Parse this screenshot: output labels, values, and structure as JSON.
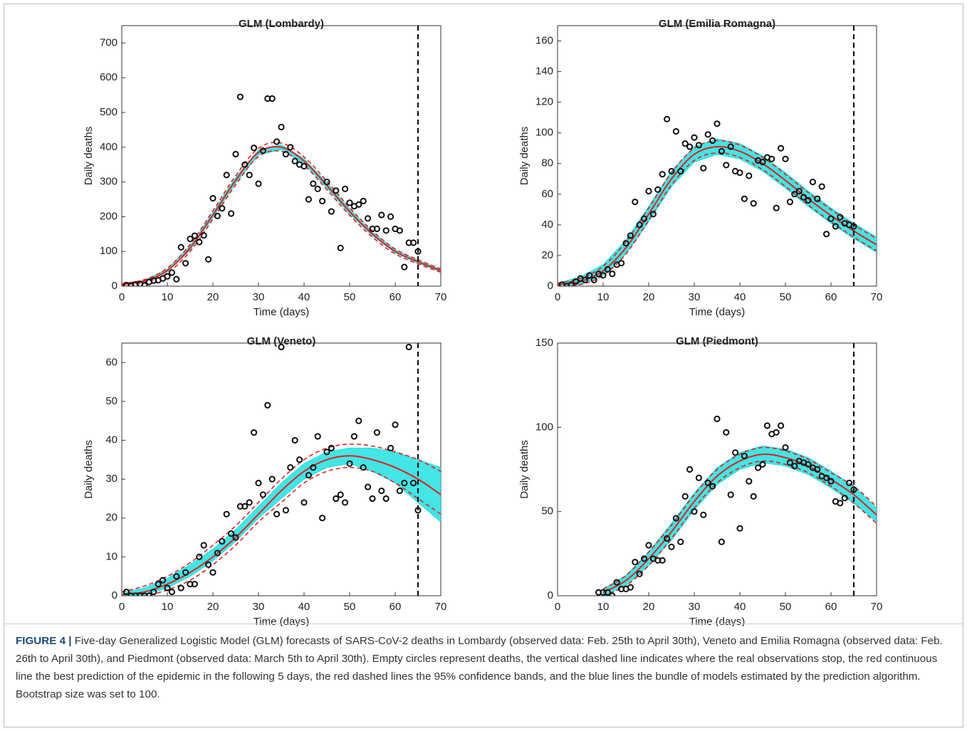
{
  "chart_data": [
    {
      "type": "glm-forecast",
      "title": "GLM (Lombardy)",
      "x_label": "Time (days)",
      "y_label": "Daily deaths",
      "xlim": [
        0,
        70
      ],
      "xticks": [
        0,
        10,
        20,
        30,
        40,
        50,
        60,
        70
      ],
      "ylim": [
        0,
        750
      ],
      "yticks": [
        0,
        100,
        200,
        300,
        400,
        500,
        600,
        700
      ],
      "cutoff_x": 65,
      "point_color": "#111111",
      "fit_color": "#e02020",
      "bundle_color": "#22e0e0",
      "points": {
        "x": [
          1,
          2,
          3,
          4,
          5,
          6,
          7,
          8,
          9,
          10,
          11,
          12,
          13,
          14,
          15,
          16,
          17,
          18,
          19,
          20,
          21,
          22,
          23,
          24,
          25,
          26,
          27,
          28,
          29,
          30,
          31,
          32,
          33,
          34,
          35,
          36,
          37,
          38,
          39,
          40,
          41,
          42,
          43,
          44,
          45,
          46,
          47,
          48,
          49,
          50,
          51,
          52,
          53,
          54,
          55,
          56,
          57,
          58,
          59,
          60,
          61,
          62,
          63,
          64,
          65
        ],
        "y": [
          3,
          2,
          5,
          6,
          2,
          12,
          16,
          17,
          22,
          28,
          39,
          20,
          112,
          66,
          136,
          145,
          127,
          146,
          77,
          253,
          202,
          224,
          320,
          209,
          380,
          545,
          350,
          320,
          398,
          295,
          390,
          540,
          540,
          416,
          458,
          380,
          400,
          360,
          350,
          345,
          250,
          295,
          280,
          245,
          300,
          215,
          275,
          110,
          280,
          240,
          230,
          235,
          245,
          195,
          165,
          165,
          205,
          160,
          200,
          165,
          160,
          55,
          125,
          125,
          100
        ]
      },
      "fit": {
        "x": [
          0,
          5,
          10,
          15,
          20,
          25,
          30,
          35,
          40,
          45,
          50,
          55,
          60,
          65,
          70
        ],
        "values": [
          5,
          15,
          45,
          110,
          205,
          305,
          385,
          400,
          360,
          290,
          215,
          150,
          100,
          70,
          45
        ],
        "lower": [
          3,
          11,
          38,
          100,
          193,
          292,
          373,
          388,
          348,
          278,
          204,
          141,
          93,
          64,
          40
        ],
        "upper": [
          7,
          19,
          52,
          120,
          217,
          318,
          397,
          412,
          372,
          302,
          226,
          159,
          107,
          76,
          50
        ],
        "bundle_lower": [
          4,
          13,
          41,
          104,
          198,
          297,
          378,
          393,
          353,
          283,
          208,
          145,
          96,
          66,
          42
        ],
        "bundle_upper": [
          6,
          17,
          49,
          116,
          212,
          313,
          392,
          407,
          367,
          297,
          222,
          155,
          104,
          74,
          48
        ]
      }
    },
    {
      "type": "glm-forecast",
      "title": "GLM (Emilia Romagna)",
      "x_label": "Time (days)",
      "y_label": "Daily deaths",
      "xlim": [
        0,
        70
      ],
      "xticks": [
        0,
        10,
        20,
        30,
        40,
        50,
        60,
        70
      ],
      "ylim": [
        0,
        170
      ],
      "yticks": [
        0,
        20,
        40,
        60,
        80,
        100,
        120,
        140,
        160
      ],
      "cutoff_x": 65,
      "point_color": "#111111",
      "fit_color": "#e02020",
      "bundle_color": "#22e0e0",
      "points": {
        "x": [
          1,
          2,
          3,
          4,
          5,
          6,
          7,
          8,
          9,
          10,
          11,
          12,
          13,
          14,
          15,
          16,
          17,
          18,
          19,
          20,
          21,
          22,
          23,
          24,
          25,
          26,
          27,
          28,
          29,
          30,
          31,
          32,
          33,
          34,
          35,
          36,
          37,
          38,
          39,
          40,
          41,
          42,
          43,
          44,
          45,
          46,
          47,
          48,
          49,
          50,
          51,
          52,
          53,
          54,
          55,
          56,
          57,
          58,
          59,
          60,
          61,
          62,
          63,
          64,
          65
        ],
        "y": [
          1,
          0,
          1,
          3,
          5,
          4,
          7,
          4,
          8,
          7,
          11,
          8,
          14,
          15,
          28,
          33,
          55,
          40,
          44,
          62,
          47,
          63,
          73,
          109,
          75,
          101,
          75,
          93,
          91,
          97,
          92,
          77,
          99,
          95,
          106,
          88,
          79,
          91,
          75,
          74,
          57,
          72,
          54,
          82,
          81,
          84,
          83,
          51,
          90,
          83,
          55,
          60,
          62,
          58,
          56,
          68,
          57,
          65,
          34,
          44,
          39,
          45,
          41,
          40,
          39
        ]
      },
      "fit": {
        "x": [
          0,
          5,
          10,
          15,
          20,
          25,
          30,
          35,
          40,
          45,
          50,
          55,
          60,
          65,
          70
        ],
        "values": [
          1,
          3,
          10,
          25,
          47,
          70,
          86,
          91,
          88,
          80,
          69,
          57,
          46,
          36,
          27
        ],
        "lower": [
          0,
          1,
          7,
          21,
          43,
          66,
          82,
          87,
          84,
          76,
          65,
          53,
          42,
          32,
          23
        ],
        "upper": [
          2,
          5,
          13,
          29,
          51,
          74,
          90,
          95,
          92,
          84,
          73,
          61,
          50,
          40,
          31
        ],
        "bundle_lower": [
          0,
          1,
          7,
          21,
          42,
          65,
          81,
          86,
          83,
          75,
          64,
          52,
          41,
          31,
          22
        ],
        "bundle_upper": [
          2,
          6,
          14,
          30,
          52,
          75,
          91,
          96,
          93,
          85,
          74,
          62,
          51,
          41,
          32
        ]
      }
    },
    {
      "type": "glm-forecast",
      "title": "GLM (Veneto)",
      "x_label": "Time (days)",
      "y_label": "Daily deaths",
      "xlim": [
        0,
        70
      ],
      "xticks": [
        0,
        10,
        20,
        30,
        40,
        50,
        60,
        70
      ],
      "ylim": [
        0,
        65
      ],
      "yticks": [
        0,
        10,
        20,
        30,
        40,
        50,
        60
      ],
      "cutoff_x": 65,
      "point_color": "#111111",
      "fit_color": "#e02020",
      "bundle_color": "#22e0e0",
      "points": {
        "x": [
          1,
          2,
          3,
          4,
          5,
          6,
          7,
          8,
          9,
          10,
          11,
          12,
          13,
          14,
          15,
          16,
          17,
          18,
          19,
          20,
          21,
          22,
          23,
          24,
          25,
          26,
          27,
          28,
          29,
          30,
          31,
          32,
          33,
          34,
          35,
          36,
          37,
          38,
          39,
          40,
          41,
          42,
          43,
          44,
          45,
          46,
          47,
          48,
          49,
          50,
          51,
          52,
          53,
          54,
          55,
          56,
          57,
          58,
          59,
          60,
          61,
          62,
          63,
          64,
          65
        ],
        "y": [
          1,
          0,
          0,
          0,
          0,
          0,
          1,
          3,
          4,
          2,
          1,
          5,
          2,
          6,
          3,
          3,
          10,
          13,
          8,
          6,
          11,
          14,
          21,
          16,
          15,
          23,
          23,
          24,
          42,
          29,
          26,
          49,
          30,
          21,
          64,
          22,
          33,
          40,
          35,
          24,
          31,
          33,
          41,
          20,
          37,
          38,
          25,
          26,
          24,
          34,
          41,
          45,
          33,
          28,
          25,
          42,
          27,
          25,
          38,
          44,
          27,
          29,
          64,
          29,
          22
        ]
      },
      "fit": {
        "x": [
          0,
          5,
          10,
          15,
          20,
          25,
          30,
          35,
          40,
          45,
          50,
          55,
          60,
          65,
          70
        ],
        "values": [
          0.3,
          1,
          3,
          6,
          10,
          15,
          21,
          27,
          32,
          35,
          36,
          35,
          33,
          30,
          26
        ],
        "lower": [
          0,
          0,
          1.5,
          4,
          8,
          13,
          19,
          24,
          29,
          32,
          33,
          32,
          29,
          25,
          21
        ],
        "upper": [
          1,
          2.5,
          5,
          8.5,
          13,
          18,
          24,
          30,
          35,
          38,
          39,
          38.5,
          37,
          35,
          32
        ],
        "bundle_lower": [
          0,
          0.3,
          2,
          5,
          9,
          14,
          20,
          25,
          30,
          33,
          34,
          32,
          29,
          24,
          19
        ],
        "bundle_upper": [
          0.8,
          2,
          4.5,
          8,
          12,
          17,
          23,
          29,
          34,
          37,
          38,
          38,
          37,
          35,
          33
        ]
      }
    },
    {
      "type": "glm-forecast",
      "title": "GLM (Piedmont)",
      "x_label": "Time (days)",
      "y_label": "Daily deaths",
      "xlim": [
        0,
        70
      ],
      "xticks": [
        0,
        10,
        20,
        30,
        40,
        50,
        60,
        70
      ],
      "ylim": [
        0,
        150
      ],
      "yticks": [
        0,
        50,
        100,
        150
      ],
      "cutoff_x": 65,
      "point_color": "#111111",
      "fit_color": "#e02020",
      "bundle_color": "#22e0e0",
      "points": {
        "x": [
          9,
          10,
          11,
          12,
          13,
          14,
          15,
          16,
          17,
          18,
          19,
          20,
          21,
          22,
          23,
          24,
          25,
          26,
          27,
          28,
          29,
          30,
          31,
          32,
          33,
          34,
          35,
          36,
          37,
          38,
          39,
          40,
          41,
          42,
          43,
          44,
          45,
          46,
          47,
          48,
          49,
          50,
          51,
          52,
          53,
          54,
          55,
          56,
          57,
          58,
          59,
          60,
          61,
          62,
          63,
          64,
          65
        ],
        "y": [
          2,
          2,
          2,
          0,
          8,
          4,
          4,
          5,
          20,
          13,
          22,
          30,
          22,
          21,
          21,
          34,
          29,
          46,
          32,
          59,
          75,
          50,
          70,
          48,
          67,
          65,
          105,
          32,
          97,
          60,
          85,
          40,
          83,
          68,
          59,
          76,
          78,
          101,
          96,
          97,
          101,
          88,
          79,
          77,
          80,
          79,
          78,
          76,
          75,
          71,
          70,
          68,
          56,
          55,
          58,
          67,
          63
        ]
      },
      "fit": {
        "x": [
          10,
          15,
          20,
          25,
          30,
          35,
          40,
          45,
          50,
          55,
          60,
          65,
          70
        ],
        "values": [
          2,
          9,
          22,
          38,
          56,
          71,
          80,
          84,
          82,
          77,
          69,
          60,
          48
        ],
        "lower": [
          0,
          6,
          18,
          34,
          52,
          67,
          76,
          80,
          78,
          73,
          65,
          55,
          43
        ],
        "upper": [
          4,
          12,
          26,
          42,
          60,
          75,
          84,
          88,
          86,
          81,
          73,
          65,
          53
        ],
        "bundle_lower": [
          0,
          6,
          18,
          33,
          51,
          66,
          75,
          79,
          77,
          72,
          64,
          55,
          44
        ],
        "bundle_upper": [
          4,
          12,
          26,
          43,
          61,
          76,
          85,
          89,
          87,
          82,
          74,
          65,
          52
        ]
      }
    }
  ],
  "caption": {
    "label": "FIGURE 4 |",
    "text": "Five-day Generalized Logistic Model (GLM) forecasts of SARS-CoV-2 deaths in Lombardy (observed data: Feb. 25th to April 30th), Veneto and Emilia Romagna (observed data: Feb. 26th to April 30th), and Piedmont (observed data: March 5th to April 30th). Empty circles represent deaths, the vertical dashed line indicates where the real observations stop, the red continuous line the best prediction of the epidemic in the following 5 days, the red dashed lines the 95% confidence bands, and the blue lines the bundle of models estimated by the prediction algorithm. Bootstrap size was set to 100."
  }
}
